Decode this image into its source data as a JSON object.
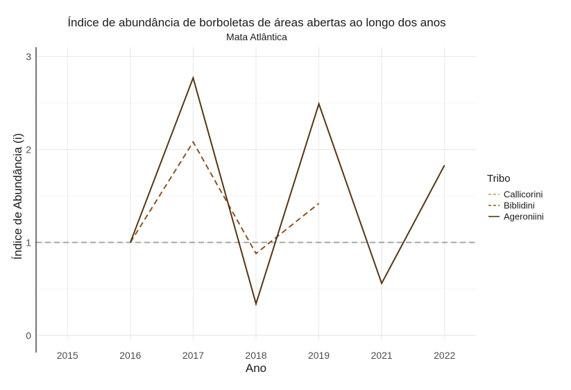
{
  "chart_data": {
    "type": "line",
    "title": "Índice de abundância de borboletas de áreas abertas ao longo dos anos",
    "subtitle": "Mata Atlântica",
    "xlabel": "Ano",
    "ylabel": "Índice de Abundância (i)",
    "categories": [
      "2015",
      "2016",
      "2017",
      "2018",
      "2019",
      "2021",
      "2022"
    ],
    "yticks": [
      0,
      1,
      2,
      3
    ],
    "ylim": [
      -0.05,
      3.1
    ],
    "grid": true,
    "reference_line": {
      "y": 1,
      "color": "#a6a6a6",
      "style": "dashed"
    },
    "legend": {
      "title": "Tribo",
      "placement": "right",
      "entries": [
        "Callicorini",
        "Biblidini",
        "Ageroniini"
      ]
    },
    "series": [
      {
        "name": "Callicorini",
        "color": "#c8944a",
        "dash": "dashed",
        "points": []
      },
      {
        "name": "Biblidini",
        "color": "#8c5223",
        "dash": "dashed",
        "points": [
          [
            "2016",
            1.0
          ],
          [
            "2017",
            2.08
          ],
          [
            "2018",
            0.88
          ],
          [
            "2019",
            1.42
          ]
        ]
      },
      {
        "name": "Ageroniini",
        "color": "#543515",
        "dash": "solid",
        "points": [
          [
            "2016",
            1.0
          ],
          [
            "2017",
            2.77
          ],
          [
            "2018",
            0.34
          ],
          [
            "2019",
            2.49
          ],
          [
            "2021",
            0.56
          ],
          [
            "2022",
            1.83
          ]
        ]
      }
    ]
  }
}
